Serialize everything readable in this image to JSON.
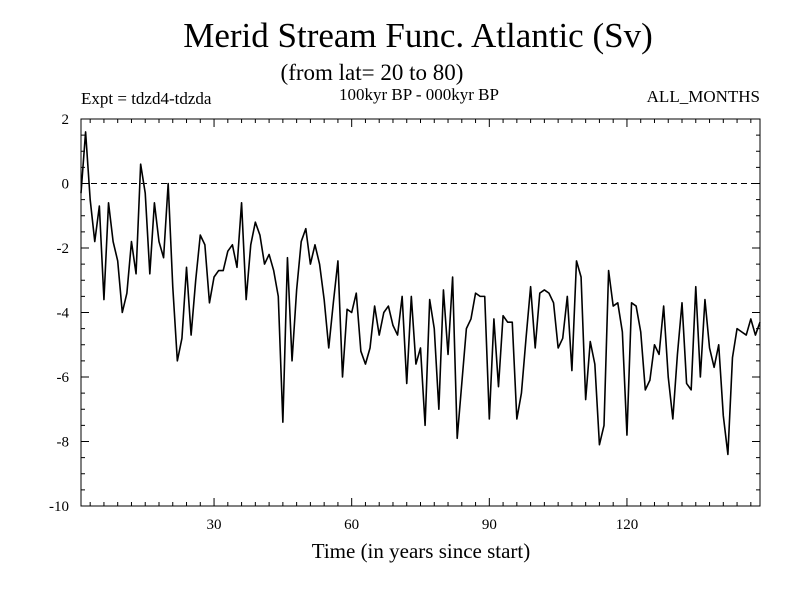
{
  "title": "Merid Stream Func. Atlantic (Sv)",
  "subtitle": "(from lat= 20 to 80)",
  "experiment": "Expt = tdzd4-tdzda",
  "period": "100kyr BP - 000kyr BP",
  "months": "ALL_MONTHS",
  "chart_data": {
    "type": "line",
    "title": "Merid Stream Func. Atlantic (Sv)",
    "subtitle": "(from lat= 20 to 80)",
    "xlabel": "Time (in years since start)",
    "ylabel": "",
    "xlim": [
      1,
      149
    ],
    "ylim": [
      -10,
      2
    ],
    "xticks": [
      30,
      60,
      90,
      120
    ],
    "yticks": [
      2,
      0,
      -2,
      -4,
      -6,
      -8,
      -10
    ],
    "reference_line": {
      "y": 0,
      "style": "dashed"
    },
    "series": [
      {
        "name": "tdzd4-tdzda",
        "x": [
          1,
          2,
          3,
          4,
          5,
          6,
          7,
          8,
          9,
          10,
          11,
          12,
          13,
          14,
          15,
          16,
          17,
          18,
          19,
          20,
          21,
          22,
          23,
          24,
          25,
          26,
          27,
          28,
          29,
          30,
          31,
          32,
          33,
          34,
          35,
          36,
          37,
          38,
          39,
          40,
          41,
          42,
          43,
          44,
          45,
          46,
          47,
          48,
          49,
          50,
          51,
          52,
          53,
          54,
          55,
          56,
          57,
          58,
          59,
          60,
          61,
          62,
          63,
          64,
          65,
          66,
          67,
          68,
          69,
          70,
          71,
          72,
          73,
          74,
          75,
          76,
          77,
          78,
          79,
          80,
          81,
          82,
          83,
          84,
          85,
          86,
          87,
          88,
          89,
          90,
          91,
          92,
          93,
          94,
          95,
          96,
          97,
          98,
          99,
          100,
          101,
          102,
          103,
          104,
          105,
          106,
          107,
          108,
          109,
          110,
          111,
          112,
          113,
          114,
          115,
          116,
          117,
          118,
          119,
          120,
          121,
          122,
          123,
          124,
          125,
          126,
          127,
          128,
          129,
          130,
          131,
          132,
          133,
          134,
          135,
          136,
          137,
          138,
          139,
          140,
          141,
          142,
          143,
          144,
          145,
          146,
          147,
          148,
          149
        ],
        "y": [
          -0.3,
          1.6,
          -0.5,
          -1.8,
          -0.7,
          -3.6,
          -0.6,
          -1.8,
          -2.4,
          -4.0,
          -3.4,
          -1.8,
          -2.8,
          0.6,
          -0.3,
          -2.8,
          -0.6,
          -1.8,
          -2.3,
          0.0,
          -3.2,
          -5.5,
          -4.8,
          -2.6,
          -4.7,
          -3.0,
          -1.6,
          -1.9,
          -3.7,
          -2.9,
          -2.7,
          -2.7,
          -2.1,
          -1.9,
          -2.6,
          -0.6,
          -3.6,
          -1.9,
          -1.2,
          -1.6,
          -2.5,
          -2.2,
          -2.7,
          -3.5,
          -7.4,
          -2.3,
          -5.5,
          -3.3,
          -1.8,
          -1.4,
          -2.5,
          -1.9,
          -2.5,
          -3.6,
          -5.1,
          -3.7,
          -2.4,
          -6.0,
          -3.9,
          -4.0,
          -3.4,
          -5.2,
          -5.6,
          -5.1,
          -3.8,
          -4.7,
          -4.0,
          -3.8,
          -4.4,
          -4.7,
          -3.5,
          -6.2,
          -3.5,
          -5.6,
          -5.1,
          -7.5,
          -3.6,
          -4.5,
          -7.0,
          -3.3,
          -5.3,
          -2.9,
          -7.9,
          -6.2,
          -4.5,
          -4.2,
          -3.4,
          -3.5,
          -3.5,
          -7.3,
          -4.2,
          -6.3,
          -4.1,
          -4.3,
          -4.3,
          -7.3,
          -6.5,
          -4.8,
          -3.2,
          -5.1,
          -3.4,
          -3.3,
          -3.4,
          -3.7,
          -5.1,
          -4.8,
          -3.5,
          -5.8,
          -2.4,
          -2.9,
          -6.7,
          -4.9,
          -5.6,
          -8.1,
          -7.5,
          -2.7,
          -3.8,
          -3.7,
          -4.6,
          -7.8,
          -3.7,
          -3.8,
          -4.6,
          -6.4,
          -6.1,
          -5.0,
          -5.3,
          -3.8,
          -6.0,
          -7.3,
          -5.3,
          -3.7,
          -6.2,
          -6.4,
          -3.2,
          -6.0,
          -3.6,
          -5.1,
          -5.7,
          -5.0,
          -7.2,
          -8.4,
          -5.4,
          -4.5,
          -4.6,
          -4.7,
          -4.2,
          -4.7,
          -4.3
        ]
      }
    ]
  }
}
